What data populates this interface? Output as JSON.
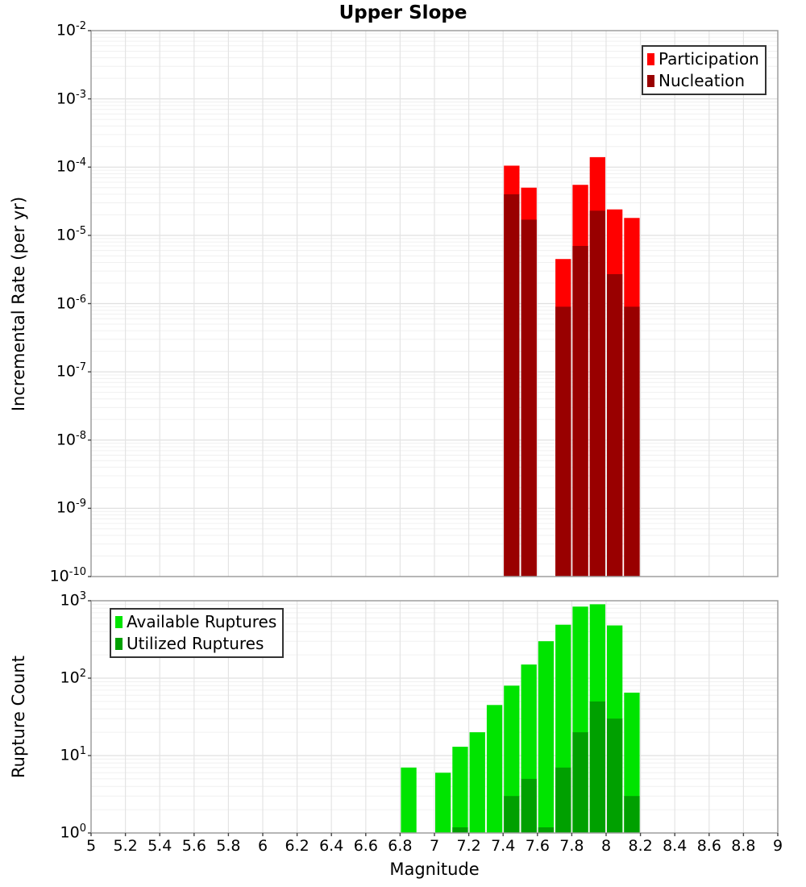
{
  "title": "Upper Slope",
  "x_axis": {
    "label": "Magnitude",
    "range": [
      5,
      9
    ],
    "tick_labels": [
      "5",
      "5.2",
      "5.4",
      "5.6",
      "5.8",
      "6",
      "6.2",
      "6.4",
      "6.6",
      "6.8",
      "7",
      "7.2",
      "7.4",
      "7.6",
      "7.8",
      "8",
      "8.2",
      "8.4",
      "8.6",
      "8.8",
      "9"
    ]
  },
  "chart_data": [
    {
      "type": "bar",
      "title": "Upper Slope",
      "ylabel": "Incremental Rate (per yr)",
      "xlabel": "Magnitude",
      "y_scale": "log",
      "ylim": [
        1e-10,
        0.01
      ],
      "ylim_exponents": [
        -10,
        -2
      ],
      "y_tick_exponents": [
        "-2",
        "-3",
        "-4",
        "-5",
        "-6",
        "-7",
        "-8",
        "-9",
        "-10"
      ],
      "grid": true,
      "legend_position": "top-right",
      "bin_width": 0.1,
      "bars_extend_to_axis_bottom": true,
      "series": [
        {
          "name": "Participation",
          "color": "#FF0000",
          "x": [
            7.45,
            7.55,
            7.75,
            7.85,
            7.95,
            8.05,
            8.15
          ],
          "values": [
            0.000105,
            5e-05,
            4.5e-06,
            5.5e-05,
            0.00014,
            2.4e-05,
            1.8e-05
          ]
        },
        {
          "name": "Nucleation",
          "color": "#990000",
          "x": [
            7.45,
            7.55,
            7.75,
            7.85,
            7.95,
            8.05,
            8.15
          ],
          "values": [
            4e-05,
            1.7e-05,
            9e-07,
            7e-06,
            2.3e-05,
            2.7e-06,
            9e-07
          ]
        }
      ]
    },
    {
      "type": "bar",
      "title": "",
      "ylabel": "Rupture Count",
      "xlabel": "Magnitude",
      "y_scale": "log",
      "ylim": [
        1,
        1000
      ],
      "ylim_exponents": [
        0,
        3
      ],
      "y_tick_exponents": [
        "3",
        "2",
        "1",
        "0"
      ],
      "grid": true,
      "legend_position": "top-left",
      "bin_width": 0.1,
      "bars_extend_to_axis_bottom": true,
      "series": [
        {
          "name": "Available Ruptures",
          "color": "#00E400",
          "x": [
            6.85,
            7.05,
            7.15,
            7.25,
            7.35,
            7.45,
            7.55,
            7.65,
            7.75,
            7.85,
            7.95,
            8.05,
            8.15
          ],
          "values": [
            7,
            6,
            13,
            20,
            45,
            80,
            150,
            300,
            490,
            840,
            900,
            480,
            65
          ]
        },
        {
          "name": "Utilized Ruptures",
          "color": "#00A000",
          "x": [
            7.15,
            7.45,
            7.55,
            7.65,
            7.75,
            7.85,
            7.95,
            8.05,
            8.15
          ],
          "values": [
            1,
            3,
            5,
            1,
            7,
            20,
            50,
            30,
            3
          ]
        }
      ]
    }
  ],
  "style_colors": {
    "grid_minor": "#F0F0F0",
    "grid_major": "#E0E0E0",
    "grid_vertical": "#E4E4E4",
    "frame": "#9E9E9E",
    "tick": "#444444"
  }
}
